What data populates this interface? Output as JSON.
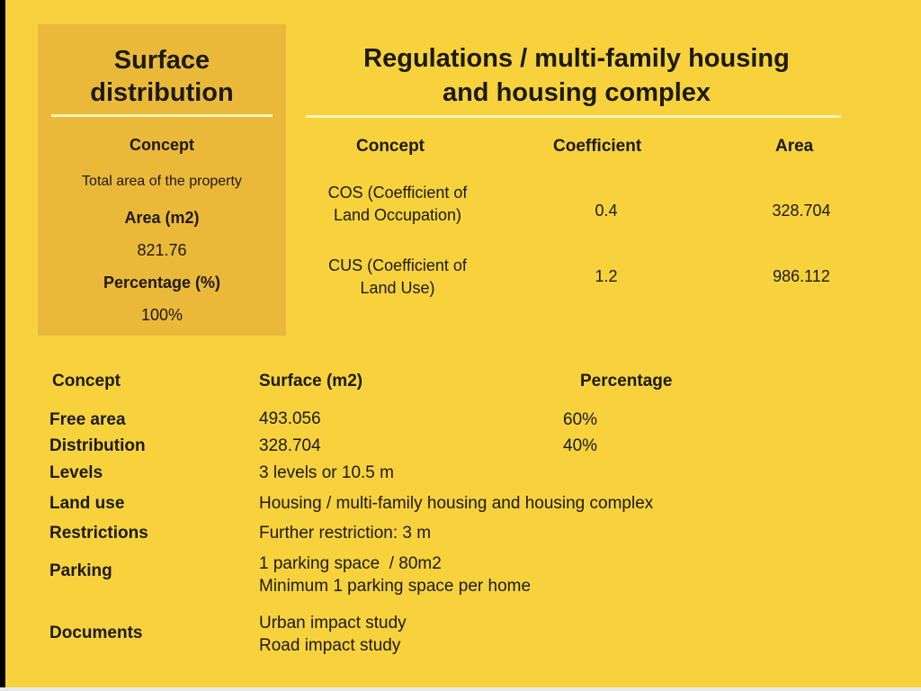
{
  "surface_panel": {
    "title_line1": "Surface",
    "title_line2": "distribution",
    "concept_label": "Concept",
    "concept_value": "Total area of the property",
    "area_label": "Area (m2)",
    "area_value": "821.76",
    "percentage_label": "Percentage (%)",
    "percentage_value": "100%"
  },
  "regulations": {
    "title_line1": "Regulations / multi-family housing",
    "title_line2": "and housing complex",
    "headers": {
      "concept": "Concept",
      "coefficient": "Coefficient",
      "area": "Area"
    },
    "rows": [
      {
        "concept_line1": "COS (Coefficient of",
        "concept_line2": "Land Occupation)",
        "coefficient": "0.4",
        "area": "328.704"
      },
      {
        "concept_line1": "CUS (Coefficient of",
        "concept_line2": "Land Use)",
        "coefficient": "1.2",
        "area": "986.112"
      }
    ]
  },
  "details": {
    "headers": {
      "concept": "Concept",
      "surface": "Surface (m2)",
      "percentage": "Percentage"
    },
    "rows": [
      {
        "label": "Free area",
        "value": "493.056",
        "percentage": "60%"
      },
      {
        "label": "Distribution",
        "value": "328.704",
        "percentage": "40%"
      },
      {
        "label": "Levels",
        "value": "3 levels or 10.5 m"
      },
      {
        "label": "Land use",
        "value": "Housing / multi-family housing and housing complex"
      },
      {
        "label": "Restrictions",
        "value": "Further restriction: 3 m"
      },
      {
        "label": "Parking",
        "value_line1": "1 parking space  / 80m2",
        "value_line2": "Minimum 1 parking space per home"
      },
      {
        "label": "Documents",
        "value_line1": "Urban impact study",
        "value_line2": "Road impact study"
      }
    ]
  }
}
